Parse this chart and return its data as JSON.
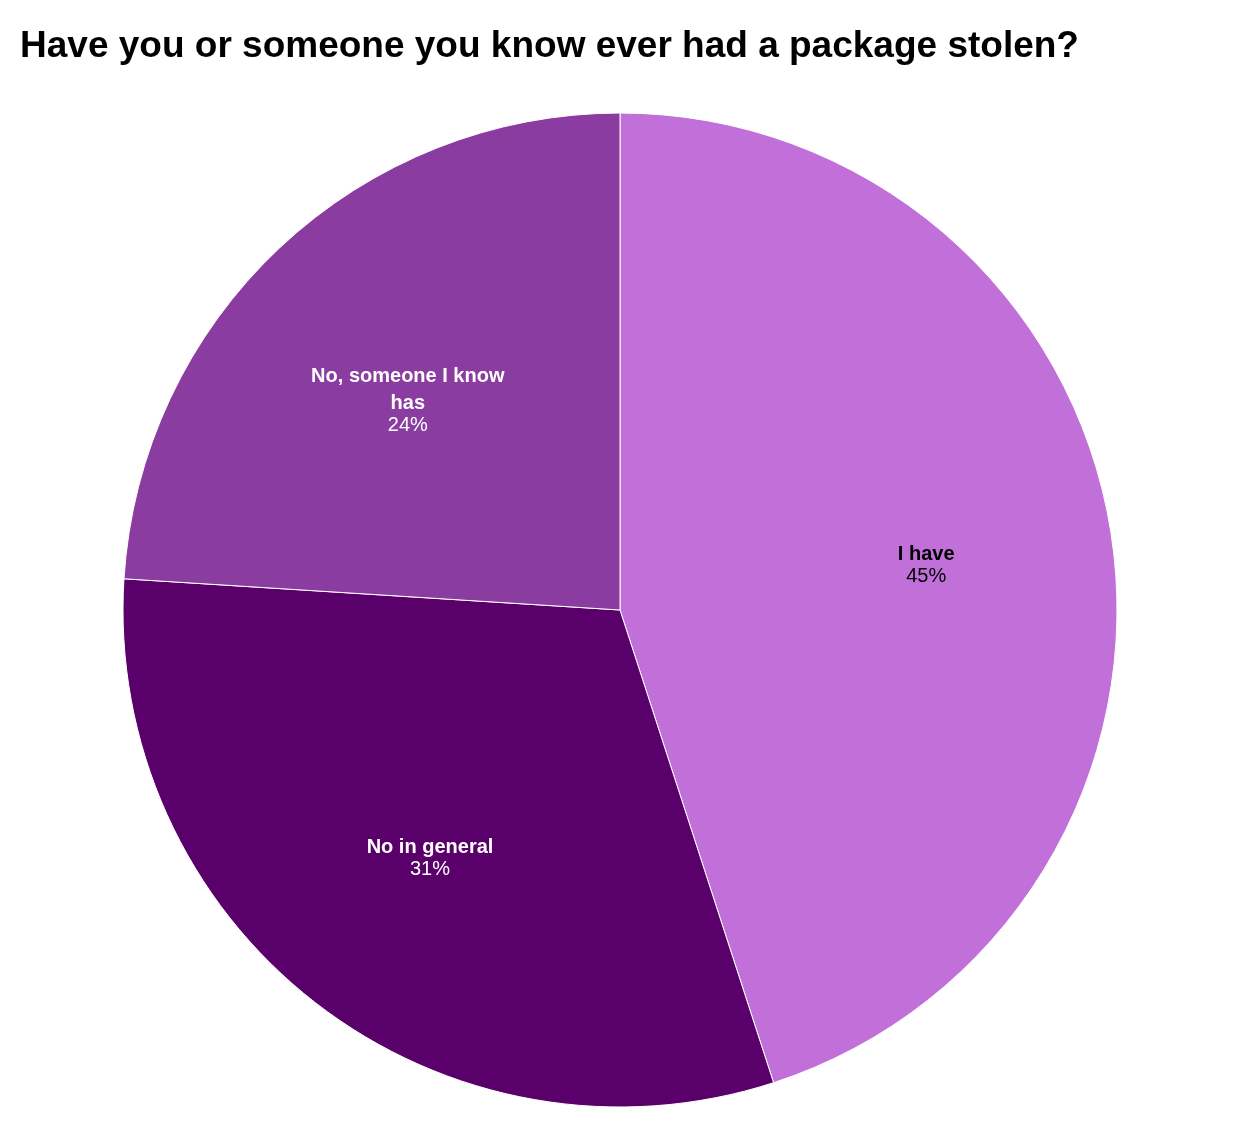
{
  "chart_data": {
    "type": "pie",
    "title": "Have you or someone you know ever had a package stolen?",
    "categories": [
      "I have",
      "No in general",
      "No, someone I know has"
    ],
    "values": [
      45,
      31,
      24
    ],
    "value_labels": [
      "45%",
      "31%",
      "24%"
    ],
    "colors": [
      "#c070d8",
      "#5a006a",
      "#8b3ca0"
    ],
    "legend": false
  }
}
